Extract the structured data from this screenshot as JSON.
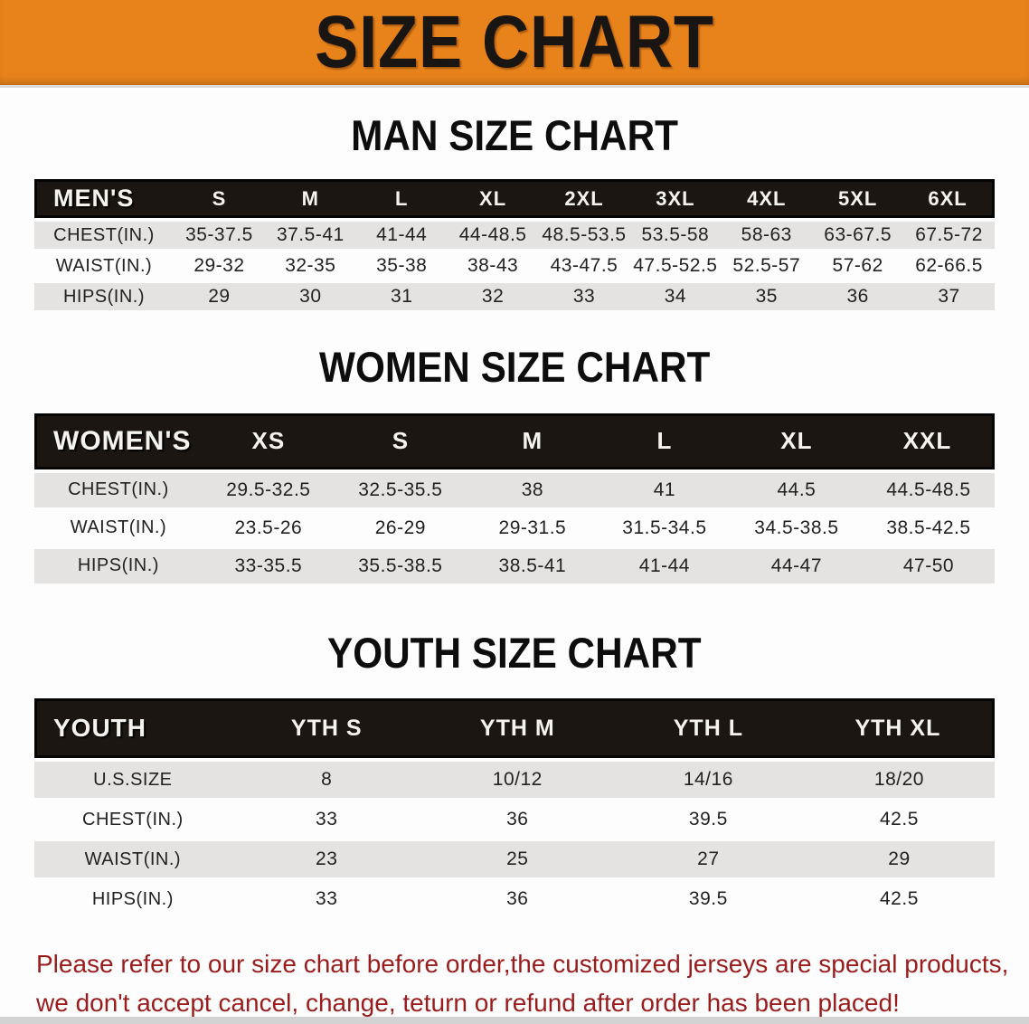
{
  "banner": {
    "title": "SIZE CHART",
    "bg_color": "#E8831C",
    "text_color": "#181512"
  },
  "sections": [
    {
      "id": "men",
      "title": "MAN SIZE CHART",
      "label": "MEN'S",
      "columns": [
        "S",
        "M",
        "L",
        "XL",
        "2XL",
        "3XL",
        "4XL",
        "5XL",
        "6XL"
      ],
      "rows": [
        {
          "label": "CHEST(IN.)",
          "values": [
            "35-37.5",
            "37.5-41",
            "41-44",
            "44-48.5",
            "48.5-53.5",
            "53.5-58",
            "58-63",
            "63-67.5",
            "67.5-72"
          ]
        },
        {
          "label": "WAIST(IN.)",
          "values": [
            "29-32",
            "32-35",
            "35-38",
            "38-43",
            "43-47.5",
            "47.5-52.5",
            "52.5-57",
            "57-62",
            "62-66.5"
          ]
        },
        {
          "label": "HIPS(IN.)",
          "values": [
            "29",
            "30",
            "31",
            "32",
            "33",
            "34",
            "35",
            "36",
            "37"
          ]
        }
      ]
    },
    {
      "id": "women",
      "title": "WOMEN SIZE CHART",
      "label": "WOMEN'S",
      "columns": [
        "XS",
        "S",
        "M",
        "L",
        "XL",
        "XXL"
      ],
      "rows": [
        {
          "label": "CHEST(IN.)",
          "values": [
            "29.5-32.5",
            "32.5-35.5",
            "38",
            "41",
            "44.5",
            "44.5-48.5"
          ]
        },
        {
          "label": "WAIST(IN.)",
          "values": [
            "23.5-26",
            "26-29",
            "29-31.5",
            "31.5-34.5",
            "34.5-38.5",
            "38.5-42.5"
          ]
        },
        {
          "label": "HIPS(IN.)",
          "values": [
            "33-35.5",
            "35.5-38.5",
            "38.5-41",
            "41-44",
            "44-47",
            "47-50"
          ]
        }
      ]
    },
    {
      "id": "youth",
      "title": "YOUTH SIZE CHART",
      "label": "YOUTH",
      "columns": [
        "YTH S",
        "YTH M",
        "YTH L",
        "YTH XL"
      ],
      "rows": [
        {
          "label": "U.S.SIZE",
          "values": [
            "8",
            "10/12",
            "14/16",
            "18/20"
          ]
        },
        {
          "label": "CHEST(IN.)",
          "values": [
            "33",
            "36",
            "39.5",
            "42.5"
          ]
        },
        {
          "label": "WAIST(IN.)",
          "values": [
            "23",
            "25",
            "27",
            "29"
          ]
        },
        {
          "label": "HIPS(IN.)",
          "values": [
            "33",
            "36",
            "39.5",
            "42.5"
          ]
        }
      ]
    }
  ],
  "footer": {
    "line1": "Please refer to our size chart before order,the customized jerseys are special products,",
    "line2": "we don't accept cancel, change, teturn or refund after order has been placed!",
    "text_color": "#9A1C1C"
  },
  "colors": {
    "banner_orange": "#E8831C",
    "header_black": "#1C1612",
    "stripe_gray": "#E4E3E2",
    "note_red": "#9A1C1C",
    "bottom_strip_gray": "#D3D3D3"
  }
}
